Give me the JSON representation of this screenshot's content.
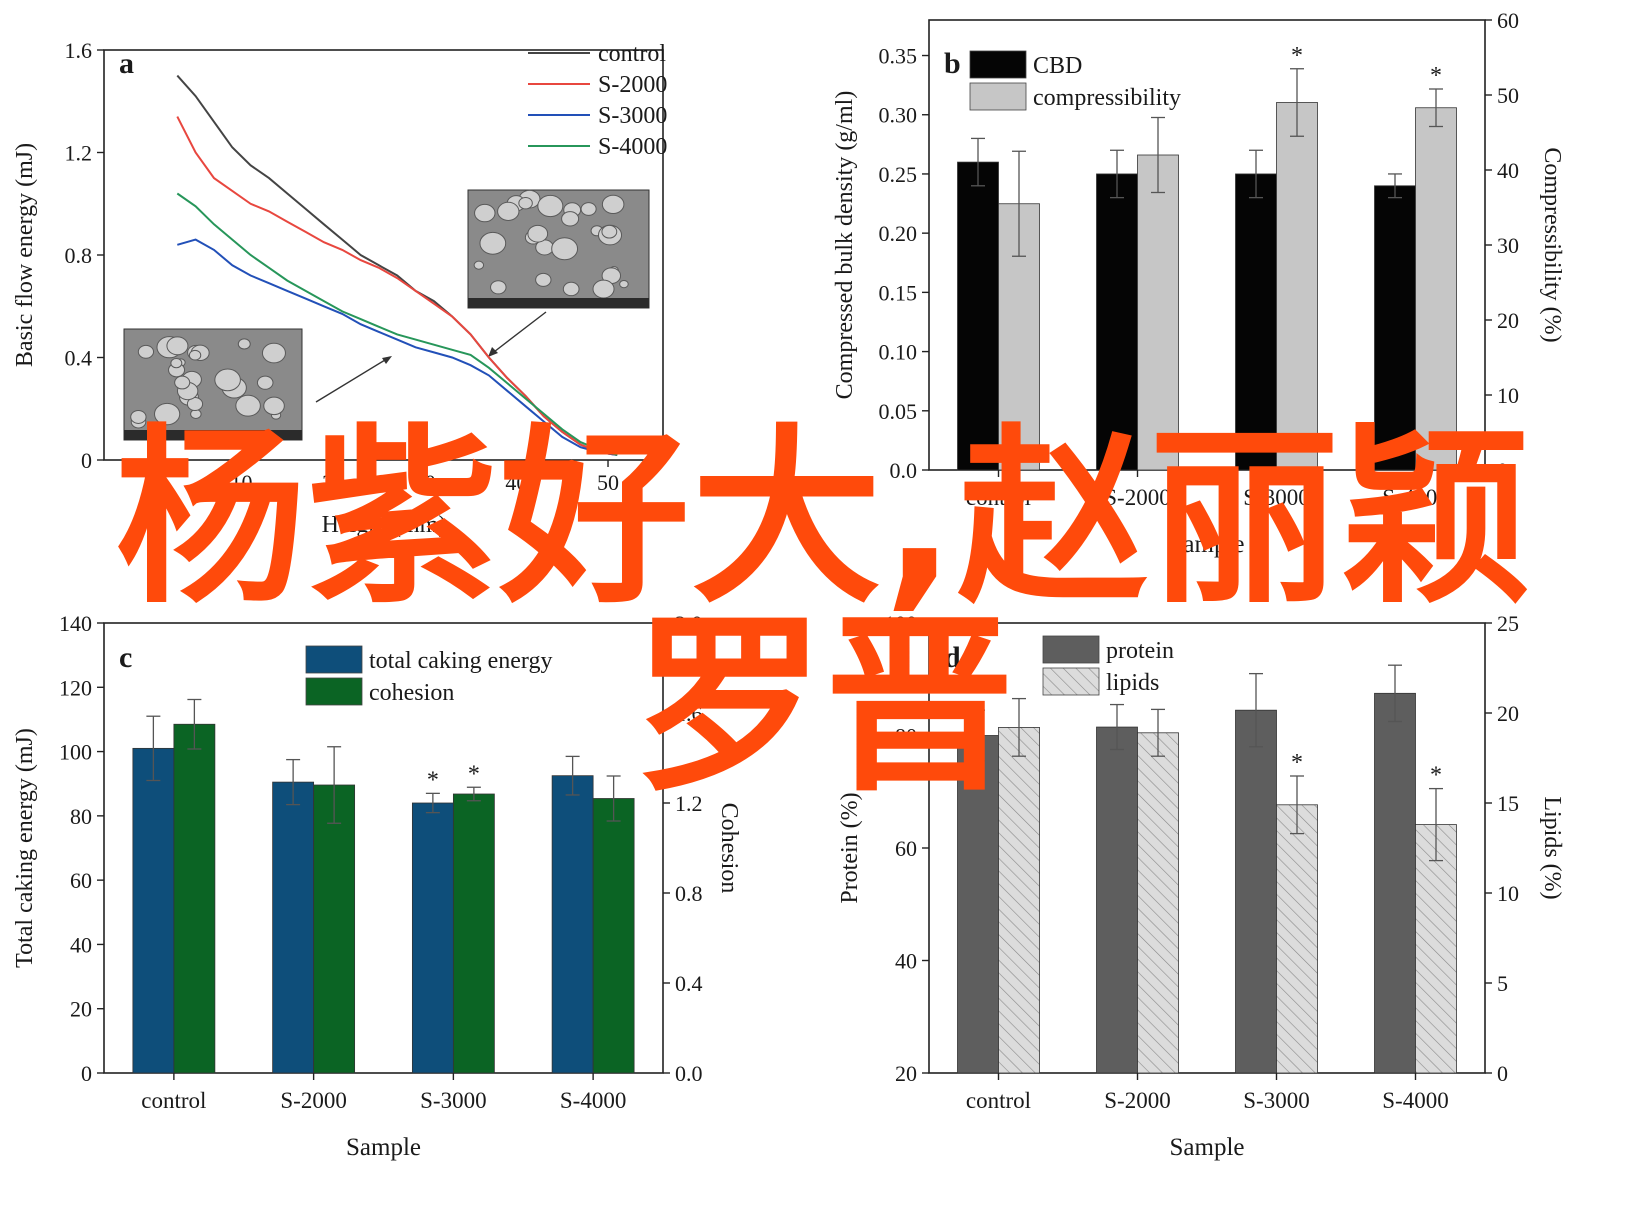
{
  "overlay_text": {
    "line1": "杨紫好大,赵丽颖",
    "line2": "罗晋"
  },
  "colors": {
    "overlay": "#ff4a0b",
    "control": "#444444",
    "s2000": "#e8473f",
    "s3000": "#2250b8",
    "s4000": "#27965a",
    "cbd": "#050505",
    "compressibility": "#c6c6c6",
    "total_caking": "#0e4e7a",
    "cohesion": "#0b6424",
    "protein": "#5e5e5e",
    "lipids": "#dcdcdc"
  },
  "chart_data": [
    {
      "id": "a",
      "panel_label": "a",
      "type": "line",
      "xlabel": "Height (mm)",
      "ylabel": "Basic flow energy (mJ)",
      "xlim": [
        -5,
        56
      ],
      "ylim": [
        0,
        1.6
      ],
      "x_ticks": [
        "0",
        "10",
        "20",
        "30",
        "40",
        "50"
      ],
      "y_ticks": [
        "0",
        "0.4",
        "0.8",
        "1.2",
        "1.6"
      ],
      "legend_position": "top-right",
      "series": [
        {
          "name": "control",
          "color_key": "control",
          "x": [
            3,
            5,
            7,
            9,
            11,
            13,
            15,
            17,
            19,
            21,
            23,
            25,
            27,
            29,
            31,
            33,
            35,
            37,
            39,
            41,
            43,
            45,
            47,
            49,
            51
          ],
          "y": [
            1.5,
            1.42,
            1.32,
            1.22,
            1.15,
            1.1,
            1.04,
            0.98,
            0.92,
            0.86,
            0.8,
            0.76,
            0.72,
            0.66,
            0.62,
            0.56,
            0.49,
            0.4,
            0.32,
            0.25,
            0.17,
            0.11,
            0.06,
            0.03,
            0.02
          ]
        },
        {
          "name": "S-2000",
          "color_key": "s2000",
          "x": [
            3,
            5,
            7,
            9,
            11,
            13,
            15,
            17,
            19,
            21,
            23,
            25,
            27,
            29,
            31,
            33,
            35,
            37,
            39,
            41,
            43,
            45,
            47,
            49,
            51
          ],
          "y": [
            1.34,
            1.2,
            1.1,
            1.05,
            1.0,
            0.97,
            0.93,
            0.89,
            0.85,
            0.82,
            0.78,
            0.75,
            0.71,
            0.66,
            0.61,
            0.56,
            0.49,
            0.4,
            0.32,
            0.25,
            0.17,
            0.11,
            0.06,
            0.03,
            0.02
          ]
        },
        {
          "name": "S-3000",
          "color_key": "s3000",
          "x": [
            3,
            5,
            7,
            9,
            11,
            13,
            15,
            17,
            19,
            21,
            23,
            25,
            27,
            29,
            31,
            33,
            35,
            37,
            39,
            41,
            43,
            45,
            47,
            49,
            51
          ],
          "y": [
            0.84,
            0.86,
            0.82,
            0.76,
            0.72,
            0.69,
            0.66,
            0.63,
            0.6,
            0.57,
            0.53,
            0.5,
            0.47,
            0.44,
            0.42,
            0.4,
            0.37,
            0.33,
            0.27,
            0.21,
            0.15,
            0.09,
            0.05,
            0.03,
            0.02
          ]
        },
        {
          "name": "S-4000",
          "color_key": "s4000",
          "x": [
            3,
            5,
            7,
            9,
            11,
            13,
            15,
            17,
            19,
            21,
            23,
            25,
            27,
            29,
            31,
            33,
            35,
            37,
            39,
            41,
            43,
            45,
            47,
            49,
            51
          ],
          "y": [
            1.04,
            0.99,
            0.92,
            0.86,
            0.8,
            0.75,
            0.7,
            0.66,
            0.62,
            0.58,
            0.55,
            0.52,
            0.49,
            0.47,
            0.45,
            0.43,
            0.41,
            0.36,
            0.3,
            0.24,
            0.18,
            0.12,
            0.07,
            0.04,
            0.02
          ]
        }
      ]
    },
    {
      "id": "b",
      "panel_label": "b",
      "type": "bar",
      "xlabel": "Sample",
      "ylabel": "Compressed bulk density (g/ml)",
      "y2label": "Compressibility (%)",
      "categories": [
        "control",
        "S-2000",
        "S-3000",
        "S-4000"
      ],
      "ylim": [
        0,
        0.38
      ],
      "y2lim": [
        0,
        60
      ],
      "y_ticks": [
        "0.0",
        "0.05",
        "0.10",
        "0.15",
        "0.20",
        "0.25",
        "0.30",
        "0.35"
      ],
      "y2_ticks": [
        "0",
        "10",
        "20",
        "30",
        "40",
        "50",
        "60"
      ],
      "legend_position": "top-left",
      "series": [
        {
          "name": "CBD",
          "axis": "left",
          "color_key": "cbd",
          "values": [
            0.26,
            0.25,
            0.25,
            0.24
          ],
          "errors": [
            0.02,
            0.02,
            0.02,
            0.01
          ],
          "stars": [
            "",
            "",
            "",
            ""
          ]
        },
        {
          "name": "compressibility",
          "axis": "right",
          "color_key": "compressibility",
          "values": [
            35.5,
            42,
            49,
            48.3
          ],
          "errors": [
            7,
            5,
            4.5,
            2.5
          ],
          "stars": [
            "",
            "",
            "*",
            "*"
          ]
        }
      ]
    },
    {
      "id": "c",
      "panel_label": "c",
      "type": "bar",
      "xlabel": "Sample",
      "ylabel": "Total caking energy (mJ)",
      "y2label": "Cohesion",
      "categories": [
        "control",
        "S-2000",
        "S-3000",
        "S-4000"
      ],
      "ylim": [
        0,
        140
      ],
      "y2lim": [
        0,
        2.0
      ],
      "y_ticks": [
        "0",
        "20",
        "40",
        "60",
        "80",
        "100",
        "120",
        "140"
      ],
      "y2_ticks": [
        "0.0",
        "0.4",
        "0.8",
        "1.2",
        "1.6",
        "2.0"
      ],
      "legend_position": "top-center",
      "series": [
        {
          "name": "total caking energy",
          "axis": "left",
          "color_key": "total_caking",
          "values": [
            101,
            90.5,
            84,
            92.5
          ],
          "errors": [
            10,
            7,
            3,
            6
          ],
          "stars": [
            "",
            "",
            "*",
            ""
          ]
        },
        {
          "name": "cohesion",
          "axis": "right",
          "color_key": "cohesion",
          "values": [
            1.55,
            1.28,
            1.24,
            1.22
          ],
          "errors": [
            0.11,
            0.17,
            0.03,
            0.1
          ],
          "stars": [
            "",
            "",
            "*",
            ""
          ]
        }
      ]
    },
    {
      "id": "d",
      "panel_label": "d",
      "type": "bar",
      "xlabel": "Sample",
      "ylabel": "Protein (%)",
      "y2label": "Lipids (%)",
      "categories": [
        "control",
        "S-2000",
        "S-3000",
        "S-4000"
      ],
      "ylim": [
        20,
        100
      ],
      "y2lim": [
        0,
        25
      ],
      "y_ticks": [
        "20",
        "40",
        "60",
        "80",
        "100"
      ],
      "y2_ticks": [
        "0",
        "5",
        "10",
        "15",
        "20",
        "25"
      ],
      "legend_position": "top-left",
      "series": [
        {
          "name": "protein",
          "axis": "left",
          "color_key": "protein",
          "values": [
            80,
            81.5,
            84.5,
            87.5
          ],
          "errors": [
            4.5,
            4,
            6.5,
            5
          ],
          "stars": [
            "",
            "",
            "",
            ""
          ]
        },
        {
          "name": "lipids",
          "axis": "right",
          "color_key": "lipids",
          "values": [
            19.2,
            18.9,
            14.9,
            13.8
          ],
          "errors": [
            1.6,
            1.3,
            1.6,
            2.0
          ],
          "stars": [
            "",
            "",
            "*",
            "*"
          ],
          "pattern": "hatched"
        }
      ]
    }
  ]
}
